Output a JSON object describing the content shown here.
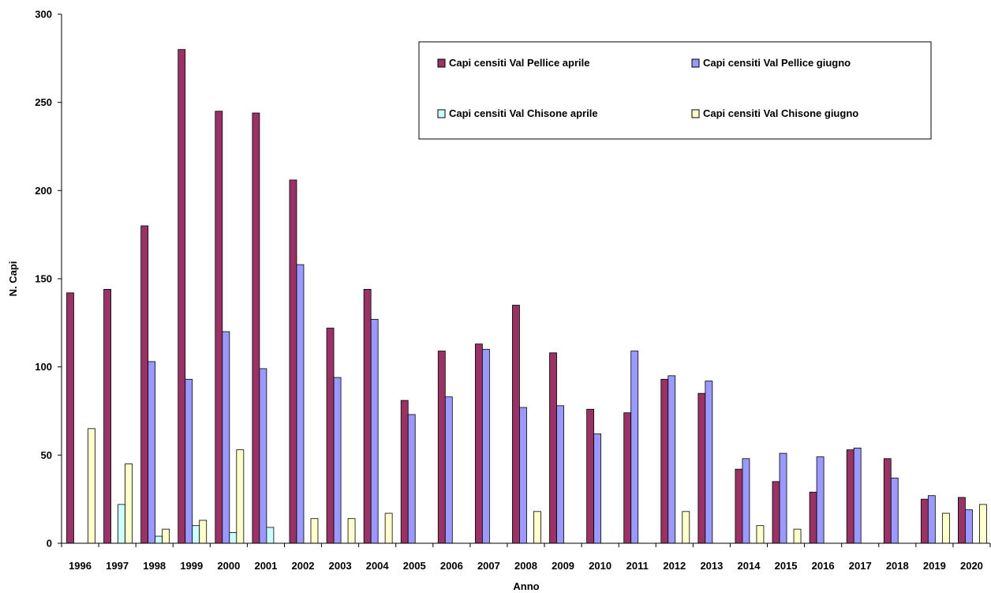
{
  "chart_data": {
    "type": "bar",
    "xlabel": "Anno",
    "ylabel": "N. Capi",
    "ylim": [
      0,
      300
    ],
    "yticks": [
      0,
      50,
      100,
      150,
      200,
      250,
      300
    ],
    "grid": false,
    "legend_position": "top-right",
    "categories": [
      "1996",
      "1997",
      "1998",
      "1999",
      "2000",
      "2001",
      "2002",
      "2003",
      "2004",
      "2005",
      "2006",
      "2007",
      "2008",
      "2009",
      "2010",
      "2011",
      "2012",
      "2013",
      "2014",
      "2015",
      "2016",
      "2017",
      "2018",
      "2019",
      "2020"
    ],
    "series": [
      {
        "name": "Capi censiti Val Pellice aprile",
        "color": "#993366",
        "values": [
          142,
          144,
          180,
          280,
          245,
          244,
          206,
          122,
          144,
          81,
          109,
          113,
          135,
          108,
          76,
          74,
          93,
          85,
          42,
          35,
          29,
          53,
          48,
          25,
          26
        ]
      },
      {
        "name": "Capi censiti Val Pellice giugno",
        "color": "#9999ff",
        "values": [
          null,
          null,
          103,
          93,
          120,
          99,
          158,
          94,
          127,
          73,
          83,
          110,
          77,
          78,
          62,
          109,
          95,
          92,
          48,
          51,
          49,
          54,
          37,
          27,
          19
        ]
      },
      {
        "name": "Capi censiti Val Chisone aprile",
        "color": "#ccffff",
        "values": [
          null,
          22,
          4,
          10,
          6,
          9,
          null,
          null,
          null,
          null,
          null,
          null,
          null,
          null,
          null,
          null,
          null,
          null,
          null,
          null,
          null,
          null,
          null,
          null,
          null
        ]
      },
      {
        "name": "Capi censiti Val Chisone giugno",
        "color": "#ffffcc",
        "values": [
          65,
          45,
          8,
          13,
          53,
          null,
          14,
          14,
          17,
          null,
          null,
          null,
          18,
          null,
          null,
          null,
          18,
          null,
          10,
          8,
          null,
          null,
          null,
          17,
          22
        ]
      }
    ]
  }
}
